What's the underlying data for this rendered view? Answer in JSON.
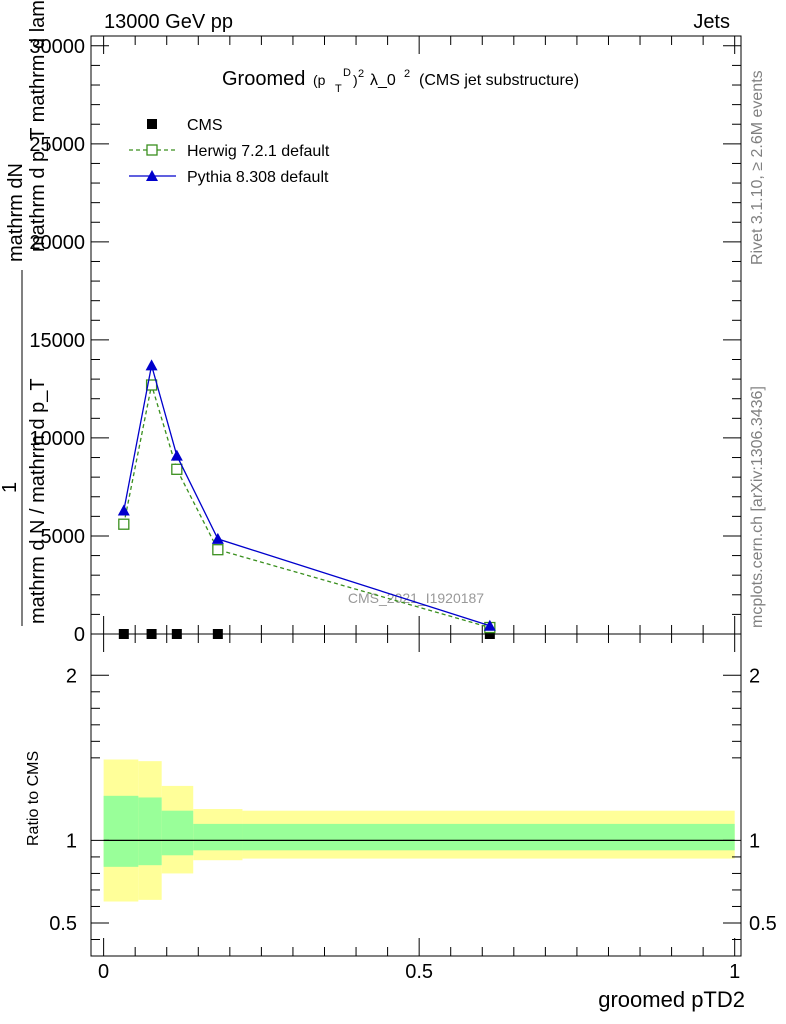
{
  "header": {
    "left": "13000 GeV pp",
    "right": "Jets"
  },
  "side_labels": {
    "upper": "Rivet 3.1.10, ≥ 2.6M events",
    "lower": "mcplots.cern.ch [arXiv:1306.3436]"
  },
  "watermark": "CMS_2021_I1920187",
  "chart_data": [
    {
      "type": "line",
      "title": "Groomed (p_T^D)^2 λ_0^2 (CMS jet substructure)",
      "title_main": "Groomed",
      "title_tail": "λ_0",
      "title_rest": "(CMS jet substructure)",
      "xlabel": "groomed pTD2",
      "ylabel_top": "mathrm dN",
      "ylabel_top2": "mathrm d p_T mathrm d lambda",
      "ylabel_mid": "1",
      "ylabel_bottom": "mathrm d N / mathrm d p_T",
      "xlim": [
        -0.02,
        1.01
      ],
      "ylim": [
        0,
        30500
      ],
      "yticks": [
        0,
        5000,
        10000,
        15000,
        20000,
        25000,
        30000
      ],
      "ytick_labels": [
        "0",
        "5000",
        "10000",
        "15000",
        "20000",
        "25000",
        "30000"
      ],
      "legend_position": "top-left",
      "series": [
        {
          "name": "CMS",
          "color": "#000000",
          "marker": "filled-square",
          "x": [
            0.032,
            0.076,
            0.116,
            0.181,
            0.612
          ],
          "y": [
            0,
            0,
            0,
            0,
            0
          ]
        },
        {
          "name": "Herwig 7.2.1 default",
          "color": "#3a8f1e",
          "marker": "open-square",
          "line": "dashed",
          "x": [
            0.032,
            0.076,
            0.116,
            0.181,
            0.612
          ],
          "y": [
            5600,
            12700,
            8400,
            4300,
            330
          ]
        },
        {
          "name": "Pythia 8.308 default",
          "color": "#0000cc",
          "marker": "filled-triangle",
          "line": "solid",
          "x": [
            0.032,
            0.076,
            0.116,
            0.181,
            0.612
          ],
          "y": [
            6300,
            13700,
            9100,
            4850,
            420
          ]
        }
      ]
    },
    {
      "type": "area",
      "ylabel": "Ratio to CMS",
      "xlim": [
        -0.02,
        1.01
      ],
      "ylim": [
        0.3,
        2.25
      ],
      "yticks": [
        0.5,
        1,
        2
      ],
      "ytick_labels": [
        "0.5",
        "1",
        "2"
      ],
      "xticks": [
        0,
        0.5,
        1
      ],
      "xtick_labels": [
        "0",
        "0.5",
        "1"
      ],
      "reference_line": 1,
      "bands": [
        {
          "x0": 0.0,
          "x1": 0.055,
          "yellow": [
            0.63,
            1.49
          ],
          "green": [
            0.84,
            1.27
          ]
        },
        {
          "x0": 0.055,
          "x1": 0.092,
          "yellow": [
            0.64,
            1.48
          ],
          "green": [
            0.85,
            1.26
          ]
        },
        {
          "x0": 0.092,
          "x1": 0.142,
          "yellow": [
            0.8,
            1.33
          ],
          "green": [
            0.91,
            1.18
          ]
        },
        {
          "x0": 0.142,
          "x1": 0.22,
          "yellow": [
            0.88,
            1.19
          ],
          "green": [
            0.94,
            1.1
          ]
        },
        {
          "x0": 0.22,
          "x1": 1.0,
          "yellow": [
            0.89,
            1.18
          ],
          "green": [
            0.94,
            1.1
          ]
        }
      ],
      "band_colors": {
        "yellow": "#ffff99",
        "green": "#99ff99"
      }
    }
  ]
}
